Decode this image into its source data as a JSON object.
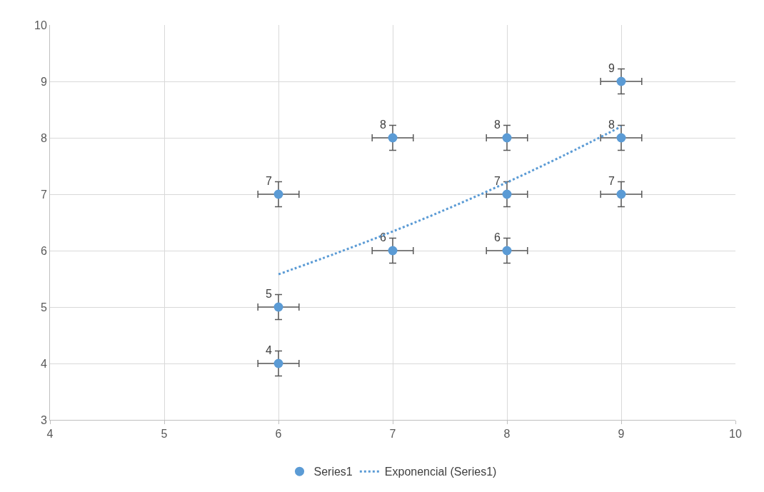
{
  "chart_data": {
    "type": "scatter",
    "xlim": [
      4,
      10
    ],
    "ylim": [
      3,
      10
    ],
    "xticks": [
      4,
      5,
      6,
      7,
      8,
      9,
      10
    ],
    "yticks": [
      3,
      4,
      5,
      6,
      7,
      8,
      9,
      10
    ],
    "grid": true,
    "legend": "bottom",
    "series": [
      {
        "name": "Series1",
        "color": "#5b9bd5",
        "value_labels": [
          "4",
          "5",
          "7",
          "6",
          "8",
          "6",
          "7",
          "8",
          "7",
          "8",
          "9"
        ],
        "marker": "circle",
        "x": [
          6,
          6,
          6,
          7,
          7,
          8,
          8,
          8,
          9,
          9,
          9
        ],
        "values": [
          4,
          5,
          7,
          6,
          8,
          6,
          7,
          8,
          7,
          8,
          9
        ],
        "errors": [
          0.22,
          0.22,
          0.22,
          0.22,
          0.22,
          0.22,
          0.22,
          0.22,
          0.22,
          0.22,
          0.22
        ],
        "xerrors": [
          0.18,
          0.18,
          0.18,
          0.18,
          0.18,
          0.18,
          0.18,
          0.18,
          0.18,
          0.18,
          0.18
        ]
      },
      {
        "name": "Exponencial (Series1)",
        "type": "line",
        "color": "#5b9bd5",
        "line_style": "dotted",
        "marker": "none",
        "x": [
          6,
          6.5,
          7,
          7.5,
          8,
          8.5,
          9
        ],
        "values": [
          5.58,
          5.95,
          6.34,
          6.76,
          7.21,
          7.69,
          8.2
        ]
      }
    ]
  }
}
